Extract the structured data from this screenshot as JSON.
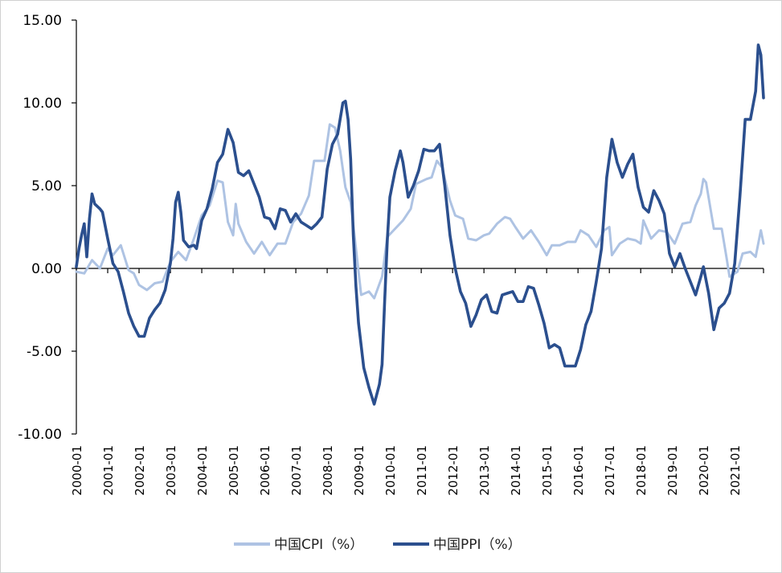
{
  "colors": {
    "cpi": "#aec3e3",
    "ppi": "#2b4f8e",
    "axis": "#000000"
  },
  "chart_data": {
    "type": "line",
    "ylim": [
      -10,
      15
    ],
    "y_ticks": [
      "15.00",
      "10.00",
      "5.00",
      "0.00",
      "-5.00",
      "-10.00"
    ],
    "y_tick_values": [
      15,
      10,
      5,
      0,
      -5,
      -10
    ],
    "x_ticks": [
      "2000-01",
      "2001-01",
      "2002-01",
      "2003-01",
      "2004-01",
      "2005-01",
      "2006-01",
      "2007-01",
      "2008-01",
      "2009-01",
      "2010-01",
      "2011-01",
      "2012-01",
      "2013-01",
      "2014-01",
      "2015-01",
      "2016-01",
      "2017-01",
      "2018-01",
      "2019-01",
      "2020-01",
      "2021-01"
    ],
    "x_start": "2000-01",
    "x_end": "2021-12",
    "legend": "bottom",
    "series": [
      {
        "name": "中国CPI（%）",
        "points": [
          [
            "2000-01",
            -0.2
          ],
          [
            "2000-04",
            -0.3
          ],
          [
            "2000-07",
            0.5
          ],
          [
            "2000-10",
            0.0
          ],
          [
            "2001-01",
            1.2
          ],
          [
            "2001-03",
            0.8
          ],
          [
            "2001-06",
            1.4
          ],
          [
            "2001-09",
            -0.1
          ],
          [
            "2001-11",
            -0.3
          ],
          [
            "2002-01",
            -1.0
          ],
          [
            "2002-04",
            -1.3
          ],
          [
            "2002-07",
            -0.9
          ],
          [
            "2002-10",
            -0.8
          ],
          [
            "2003-01",
            0.4
          ],
          [
            "2003-04",
            1.0
          ],
          [
            "2003-07",
            0.5
          ],
          [
            "2003-10",
            1.8
          ],
          [
            "2004-01",
            3.2
          ],
          [
            "2004-04",
            3.8
          ],
          [
            "2004-07",
            5.3
          ],
          [
            "2004-09",
            5.2
          ],
          [
            "2004-11",
            2.8
          ],
          [
            "2005-01",
            2.0
          ],
          [
            "2005-02",
            3.9
          ],
          [
            "2005-03",
            2.7
          ],
          [
            "2005-06",
            1.6
          ],
          [
            "2005-09",
            0.9
          ],
          [
            "2005-12",
            1.6
          ],
          [
            "2006-03",
            0.8
          ],
          [
            "2006-06",
            1.5
          ],
          [
            "2006-09",
            1.5
          ],
          [
            "2006-12",
            2.8
          ],
          [
            "2007-03",
            3.3
          ],
          [
            "2007-06",
            4.4
          ],
          [
            "2007-08",
            6.5
          ],
          [
            "2007-10",
            6.5
          ],
          [
            "2007-12",
            6.5
          ],
          [
            "2008-02",
            8.7
          ],
          [
            "2008-04",
            8.5
          ],
          [
            "2008-06",
            7.1
          ],
          [
            "2008-08",
            4.9
          ],
          [
            "2008-10",
            4.0
          ],
          [
            "2008-12",
            1.2
          ],
          [
            "2009-02",
            -1.6
          ],
          [
            "2009-05",
            -1.4
          ],
          [
            "2009-07",
            -1.8
          ],
          [
            "2009-10",
            -0.5
          ],
          [
            "2009-12",
            1.9
          ],
          [
            "2010-03",
            2.4
          ],
          [
            "2010-06",
            2.9
          ],
          [
            "2010-09",
            3.6
          ],
          [
            "2010-11",
            5.1
          ],
          [
            "2011-03",
            5.4
          ],
          [
            "2011-05",
            5.5
          ],
          [
            "2011-07",
            6.5
          ],
          [
            "2011-09",
            6.1
          ],
          [
            "2011-12",
            4.1
          ],
          [
            "2012-02",
            3.2
          ],
          [
            "2012-05",
            3.0
          ],
          [
            "2012-07",
            1.8
          ],
          [
            "2012-10",
            1.7
          ],
          [
            "2013-01",
            2.0
          ],
          [
            "2013-03",
            2.1
          ],
          [
            "2013-06",
            2.7
          ],
          [
            "2013-09",
            3.1
          ],
          [
            "2013-11",
            3.0
          ],
          [
            "2014-01",
            2.5
          ],
          [
            "2014-04",
            1.8
          ],
          [
            "2014-07",
            2.3
          ],
          [
            "2014-10",
            1.6
          ],
          [
            "2015-01",
            0.8
          ],
          [
            "2015-03",
            1.4
          ],
          [
            "2015-06",
            1.4
          ],
          [
            "2015-09",
            1.6
          ],
          [
            "2015-12",
            1.6
          ],
          [
            "2016-02",
            2.3
          ],
          [
            "2016-05",
            2.0
          ],
          [
            "2016-08",
            1.3
          ],
          [
            "2016-11",
            2.3
          ],
          [
            "2017-01",
            2.5
          ],
          [
            "2017-02",
            0.8
          ],
          [
            "2017-05",
            1.5
          ],
          [
            "2017-08",
            1.8
          ],
          [
            "2017-11",
            1.7
          ],
          [
            "2018-01",
            1.5
          ],
          [
            "2018-02",
            2.9
          ],
          [
            "2018-05",
            1.8
          ],
          [
            "2018-08",
            2.3
          ],
          [
            "2018-11",
            2.2
          ],
          [
            "2019-02",
            1.5
          ],
          [
            "2019-05",
            2.7
          ],
          [
            "2019-08",
            2.8
          ],
          [
            "2019-10",
            3.8
          ],
          [
            "2019-12",
            4.5
          ],
          [
            "2020-01",
            5.4
          ],
          [
            "2020-02",
            5.2
          ],
          [
            "2020-05",
            2.4
          ],
          [
            "2020-08",
            2.4
          ],
          [
            "2020-10",
            0.5
          ],
          [
            "2020-11",
            -0.5
          ],
          [
            "2021-01",
            -0.3
          ],
          [
            "2021-02",
            -0.2
          ],
          [
            "2021-04",
            0.9
          ],
          [
            "2021-07",
            1.0
          ],
          [
            "2021-09",
            0.7
          ],
          [
            "2021-11",
            2.3
          ],
          [
            "2021-12",
            1.5
          ]
        ]
      },
      {
        "name": "中国PPI（%）",
        "points": [
          [
            "2000-01",
            0.1
          ],
          [
            "2000-02",
            1.2
          ],
          [
            "2000-03",
            2.0
          ],
          [
            "2000-04",
            2.7
          ],
          [
            "2000-05",
            0.7
          ],
          [
            "2000-06",
            3.0
          ],
          [
            "2000-07",
            4.5
          ],
          [
            "2000-08",
            3.9
          ],
          [
            "2000-10",
            3.6
          ],
          [
            "2000-11",
            3.4
          ],
          [
            "2001-01",
            1.8
          ],
          [
            "2001-03",
            0.3
          ],
          [
            "2001-05",
            -0.2
          ],
          [
            "2001-07",
            -1.4
          ],
          [
            "2001-09",
            -2.7
          ],
          [
            "2001-11",
            -3.5
          ],
          [
            "2002-01",
            -4.1
          ],
          [
            "2002-03",
            -4.1
          ],
          [
            "2002-05",
            -3.0
          ],
          [
            "2002-07",
            -2.5
          ],
          [
            "2002-09",
            -2.1
          ],
          [
            "2002-11",
            -1.3
          ],
          [
            "2003-01",
            0.3
          ],
          [
            "2003-02",
            1.8
          ],
          [
            "2003-03",
            4.0
          ],
          [
            "2003-04",
            4.6
          ],
          [
            "2003-05",
            3.4
          ],
          [
            "2003-06",
            1.7
          ],
          [
            "2003-08",
            1.3
          ],
          [
            "2003-10",
            1.4
          ],
          [
            "2003-11",
            1.2
          ],
          [
            "2004-01",
            2.9
          ],
          [
            "2004-03",
            3.6
          ],
          [
            "2004-05",
            4.8
          ],
          [
            "2004-07",
            6.4
          ],
          [
            "2004-09",
            6.9
          ],
          [
            "2004-11",
            8.4
          ],
          [
            "2005-01",
            7.6
          ],
          [
            "2005-03",
            5.8
          ],
          [
            "2005-05",
            5.6
          ],
          [
            "2005-07",
            5.9
          ],
          [
            "2005-09",
            5.1
          ],
          [
            "2005-11",
            4.3
          ],
          [
            "2006-01",
            3.1
          ],
          [
            "2006-03",
            3.0
          ],
          [
            "2006-05",
            2.4
          ],
          [
            "2006-07",
            3.6
          ],
          [
            "2006-09",
            3.5
          ],
          [
            "2006-11",
            2.8
          ],
          [
            "2007-01",
            3.3
          ],
          [
            "2007-03",
            2.8
          ],
          [
            "2007-05",
            2.6
          ],
          [
            "2007-07",
            2.4
          ],
          [
            "2007-09",
            2.7
          ],
          [
            "2007-11",
            3.1
          ],
          [
            "2008-01",
            6.0
          ],
          [
            "2008-03",
            7.5
          ],
          [
            "2008-05",
            8.1
          ],
          [
            "2008-07",
            10.0
          ],
          [
            "2008-08",
            10.1
          ],
          [
            "2008-09",
            9.0
          ],
          [
            "2008-10",
            6.6
          ],
          [
            "2008-11",
            2.0
          ],
          [
            "2008-12",
            -1.1
          ],
          [
            "2009-01",
            -3.3
          ],
          [
            "2009-03",
            -6.0
          ],
          [
            "2009-05",
            -7.2
          ],
          [
            "2009-07",
            -8.2
          ],
          [
            "2009-09",
            -7.0
          ],
          [
            "2009-10",
            -5.8
          ],
          [
            "2009-11",
            -2.0
          ],
          [
            "2009-12",
            1.7
          ],
          [
            "2010-01",
            4.3
          ],
          [
            "2010-03",
            5.9
          ],
          [
            "2010-05",
            7.1
          ],
          [
            "2010-06",
            6.4
          ],
          [
            "2010-08",
            4.3
          ],
          [
            "2010-10",
            5.0
          ],
          [
            "2010-12",
            5.9
          ],
          [
            "2011-02",
            7.2
          ],
          [
            "2011-04",
            7.1
          ],
          [
            "2011-06",
            7.1
          ],
          [
            "2011-08",
            7.5
          ],
          [
            "2011-10",
            5.0
          ],
          [
            "2011-12",
            2.0
          ],
          [
            "2012-02",
            0.0
          ],
          [
            "2012-04",
            -1.4
          ],
          [
            "2012-06",
            -2.1
          ],
          [
            "2012-08",
            -3.5
          ],
          [
            "2012-10",
            -2.8
          ],
          [
            "2012-12",
            -1.9
          ],
          [
            "2013-02",
            -1.6
          ],
          [
            "2013-04",
            -2.6
          ],
          [
            "2013-06",
            -2.7
          ],
          [
            "2013-08",
            -1.6
          ],
          [
            "2013-10",
            -1.5
          ],
          [
            "2013-12",
            -1.4
          ],
          [
            "2014-02",
            -2.0
          ],
          [
            "2014-04",
            -2.0
          ],
          [
            "2014-06",
            -1.1
          ],
          [
            "2014-08",
            -1.2
          ],
          [
            "2014-10",
            -2.2
          ],
          [
            "2014-12",
            -3.3
          ],
          [
            "2015-02",
            -4.8
          ],
          [
            "2015-04",
            -4.6
          ],
          [
            "2015-06",
            -4.8
          ],
          [
            "2015-08",
            -5.9
          ],
          [
            "2015-10",
            -5.9
          ],
          [
            "2015-12",
            -5.9
          ],
          [
            "2016-02",
            -4.9
          ],
          [
            "2016-04",
            -3.4
          ],
          [
            "2016-06",
            -2.6
          ],
          [
            "2016-08",
            -0.8
          ],
          [
            "2016-10",
            1.2
          ],
          [
            "2016-12",
            5.5
          ],
          [
            "2017-02",
            7.8
          ],
          [
            "2017-04",
            6.4
          ],
          [
            "2017-06",
            5.5
          ],
          [
            "2017-08",
            6.3
          ],
          [
            "2017-10",
            6.9
          ],
          [
            "2017-12",
            4.9
          ],
          [
            "2018-02",
            3.7
          ],
          [
            "2018-04",
            3.4
          ],
          [
            "2018-06",
            4.7
          ],
          [
            "2018-08",
            4.1
          ],
          [
            "2018-10",
            3.3
          ],
          [
            "2018-12",
            0.9
          ],
          [
            "2019-02",
            0.1
          ],
          [
            "2019-04",
            0.9
          ],
          [
            "2019-06",
            0.0
          ],
          [
            "2019-08",
            -0.8
          ],
          [
            "2019-10",
            -1.6
          ],
          [
            "2019-12",
            -0.5
          ],
          [
            "2020-01",
            0.1
          ],
          [
            "2020-03",
            -1.5
          ],
          [
            "2020-05",
            -3.7
          ],
          [
            "2020-07",
            -2.4
          ],
          [
            "2020-09",
            -2.1
          ],
          [
            "2020-11",
            -1.5
          ],
          [
            "2021-01",
            0.3
          ],
          [
            "2021-03",
            4.4
          ],
          [
            "2021-05",
            9.0
          ],
          [
            "2021-07",
            9.0
          ],
          [
            "2021-09",
            10.7
          ],
          [
            "2021-10",
            13.5
          ],
          [
            "2021-11",
            12.9
          ],
          [
            "2021-12",
            10.3
          ]
        ]
      }
    ]
  }
}
